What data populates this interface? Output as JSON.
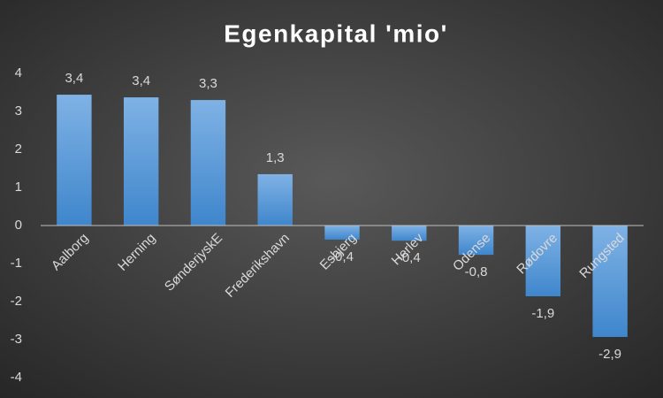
{
  "chart_data": {
    "type": "bar",
    "title": "Egenkapital 'mio'",
    "categories": [
      "Aalborg",
      "Herning",
      "SønderjyskE",
      "Frederikshavn",
      "Esbjerg",
      "Herlev",
      "Odense",
      "Rødovre",
      "Rungsted"
    ],
    "values": [
      3.44,
      3.37,
      3.3,
      1.35,
      -0.37,
      -0.4,
      -0.77,
      -1.86,
      -2.93
    ],
    "value_labels": [
      "3,4",
      "3,4",
      "3,3",
      "1,3",
      "-0,4",
      "-0,4",
      "-0,8",
      "-1,9",
      "-2,9"
    ],
    "color": "#5b9bd5",
    "ylim": [
      -4,
      4
    ],
    "yticks": [
      -4,
      -3,
      -2,
      -1,
      0,
      1,
      2,
      3,
      4
    ]
  }
}
